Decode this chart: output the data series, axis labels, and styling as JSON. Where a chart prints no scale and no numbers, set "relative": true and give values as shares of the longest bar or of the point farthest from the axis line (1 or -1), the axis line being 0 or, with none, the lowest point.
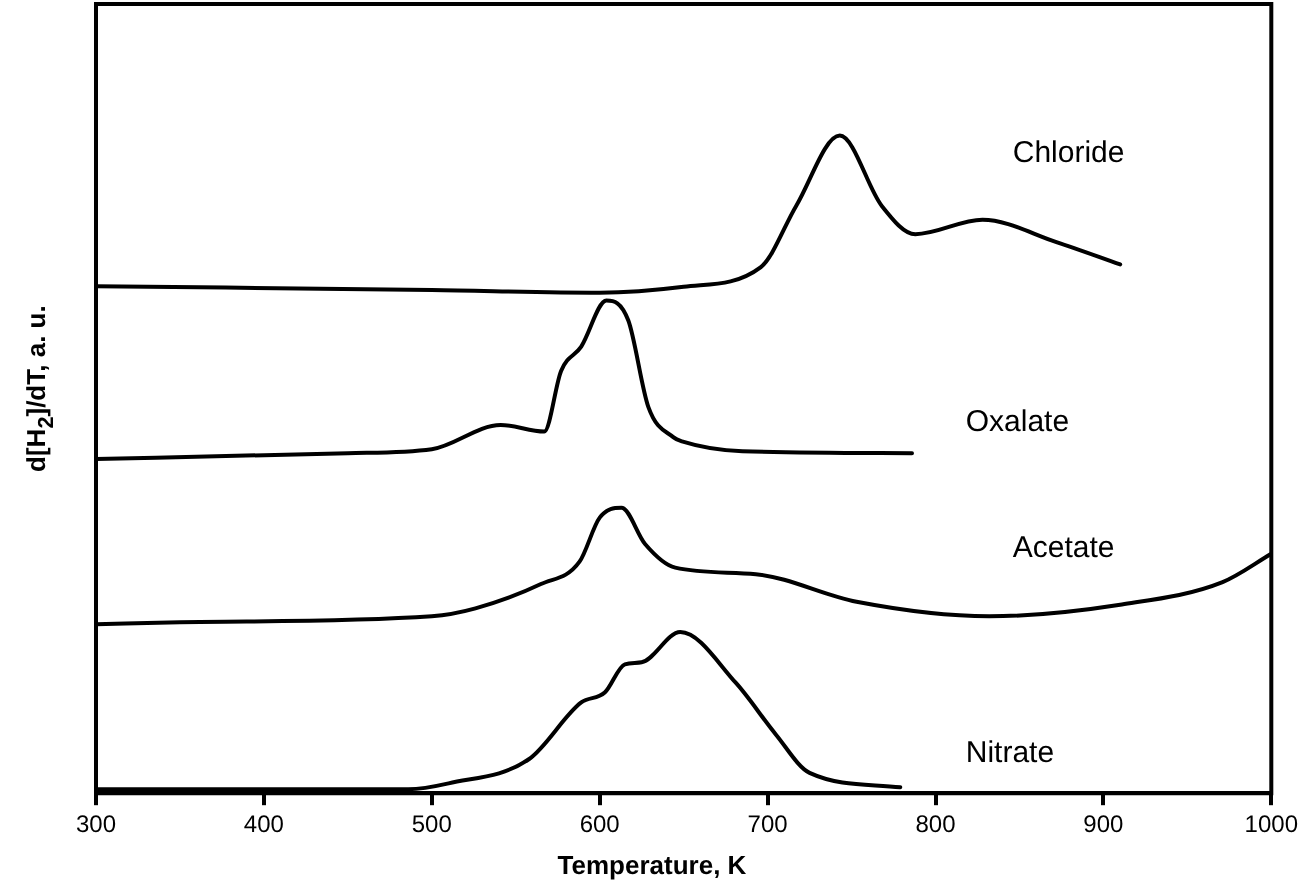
{
  "chart_data": {
    "type": "line",
    "relative": true,
    "xlabel": "Temperature, K",
    "ylabel": "d[H$_{2}$]/dT, a. u.",
    "xlim": [
      300,
      1000
    ],
    "xticks": [
      300,
      400,
      500,
      600,
      700,
      800,
      900,
      1000
    ],
    "tick_labels": "x",
    "grid": false,
    "legend": false,
    "marker": "none",
    "line_style": "solid",
    "series": [
      {
        "name": "Chloride",
        "color": "#000000",
        "x": [
          300,
          500,
          600,
          650,
          696,
          717,
          743,
          768,
          788,
          828,
          872,
          910
        ],
        "values": [
          0.771,
          0.765,
          0.761,
          0.77,
          0.8,
          0.893,
          1.0,
          0.893,
          0.85,
          0.872,
          0.838,
          0.804
        ]
      },
      {
        "name": "Oxalate",
        "color": "#000000",
        "x": [
          300,
          450,
          500,
          541,
          567,
          577,
          589,
          604,
          617,
          629,
          644,
          649,
          685,
          786
        ],
        "values": [
          0.508,
          0.517,
          0.523,
          0.56,
          0.55,
          0.642,
          0.679,
          0.749,
          0.719,
          0.587,
          0.541,
          0.535,
          0.52,
          0.517
        ]
      },
      {
        "name": "Acetate",
        "color": "#000000",
        "x": [
          300,
          350,
          500,
          526,
          565,
          588,
          600,
          613,
          627,
          645,
          693,
          753,
          832,
          911,
          971,
          1000
        ],
        "values": [
          0.257,
          0.26,
          0.269,
          0.281,
          0.318,
          0.352,
          0.419,
          0.434,
          0.379,
          0.343,
          0.333,
          0.291,
          0.269,
          0.287,
          0.321,
          0.364
        ]
      },
      {
        "name": "Nitrate",
        "color": "#000000",
        "x": [
          300,
          486,
          510,
          558,
          589,
          603,
          615,
          625,
          648,
          681,
          705,
          725,
          779
        ],
        "values": [
          0.006,
          0.006,
          0.015,
          0.052,
          0.138,
          0.153,
          0.196,
          0.199,
          0.245,
          0.168,
          0.089,
          0.031,
          0.009
        ]
      }
    ]
  }
}
